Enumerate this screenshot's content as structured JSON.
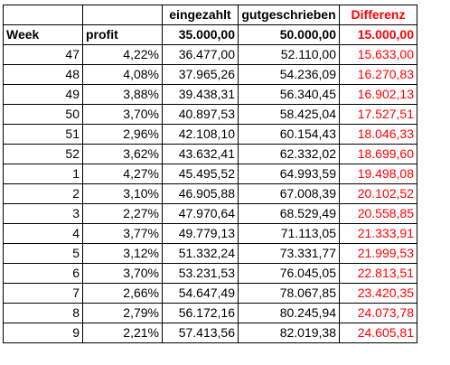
{
  "headers": {
    "week": "",
    "profit": "",
    "eingezahlt": "eingezahlt",
    "gutgeschrieben": "gutgeschrieben",
    "differenz": "Differenz"
  },
  "subheader": {
    "week": "Week",
    "profit": "profit",
    "eingezahlt": "35.000,00",
    "gutgeschrieben": "50.000,00",
    "differenz": "15.000,00"
  },
  "rows": [
    {
      "week": "47",
      "profit": "4,22%",
      "eingezahlt": "36.477,00",
      "gutgeschrieben": "52.110,00",
      "differenz": "15.633,00"
    },
    {
      "week": "48",
      "profit": "4,08%",
      "eingezahlt": "37.965,26",
      "gutgeschrieben": "54.236,09",
      "differenz": "16.270,83"
    },
    {
      "week": "49",
      "profit": "3,88%",
      "eingezahlt": "39.438,31",
      "gutgeschrieben": "56.340,45",
      "differenz": "16.902,13"
    },
    {
      "week": "50",
      "profit": "3,70%",
      "eingezahlt": "40.897,53",
      "gutgeschrieben": "58.425,04",
      "differenz": "17.527,51"
    },
    {
      "week": "51",
      "profit": "2,96%",
      "eingezahlt": "42.108,10",
      "gutgeschrieben": "60.154,43",
      "differenz": "18.046,33"
    },
    {
      "week": "52",
      "profit": "3,62%",
      "eingezahlt": "43.632,41",
      "gutgeschrieben": "62.332,02",
      "differenz": "18.699,60"
    },
    {
      "week": "1",
      "profit": "4,27%",
      "eingezahlt": "45.495,52",
      "gutgeschrieben": "64.993,59",
      "differenz": "19.498,08"
    },
    {
      "week": "2",
      "profit": "3,10%",
      "eingezahlt": "46.905,88",
      "gutgeschrieben": "67.008,39",
      "differenz": "20.102,52"
    },
    {
      "week": "3",
      "profit": "2,27%",
      "eingezahlt": "47.970,64",
      "gutgeschrieben": "68.529,49",
      "differenz": "20.558,85"
    },
    {
      "week": "4",
      "profit": "3,77%",
      "eingezahlt": "49.779,13",
      "gutgeschrieben": "71.113,05",
      "differenz": "21.333,91"
    },
    {
      "week": "5",
      "profit": "3,12%",
      "eingezahlt": "51.332,24",
      "gutgeschrieben": "73.331,77",
      "differenz": "21.999,53"
    },
    {
      "week": "6",
      "profit": "3,70%",
      "eingezahlt": "53.231,53",
      "gutgeschrieben": "76.045,05",
      "differenz": "22.813,51"
    },
    {
      "week": "7",
      "profit": "2,66%",
      "eingezahlt": "54.647,49",
      "gutgeschrieben": "78.067,85",
      "differenz": "23.420,35"
    },
    {
      "week": "8",
      "profit": "2,79%",
      "eingezahlt": "56.172,16",
      "gutgeschrieben": "80.245,94",
      "differenz": "24.073,78"
    },
    {
      "week": "9",
      "profit": "2,21%",
      "eingezahlt": "57.413,56",
      "gutgeschrieben": "82.019,38",
      "differenz": "24.605,81"
    }
  ],
  "colors": {
    "text": "#000000",
    "accent_red": "#ff0000",
    "grid": "#000000",
    "background": "#ffffff"
  }
}
